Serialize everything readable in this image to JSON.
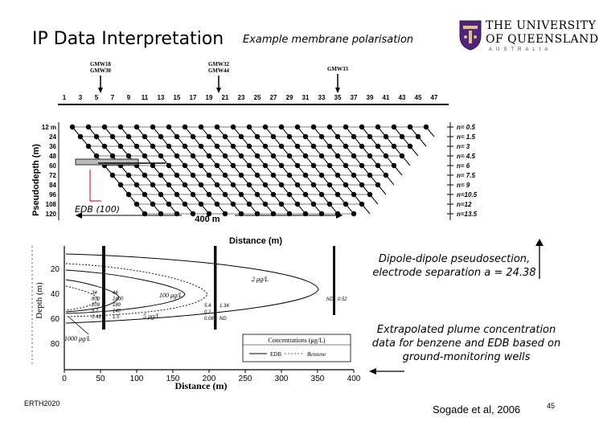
{
  "slide": {
    "title": "IP Data Interpretation",
    "subtitle": "Example membrane polarisation",
    "logo": {
      "line1": "THE UNIVERSITY",
      "line2": "OF QUEENSLAND",
      "line3": "AUSTRALIA"
    },
    "edb_label": "EDB (100)",
    "caption1": "Dipole-dipole pseudosection, electrode separation a = 24.38",
    "caption2": "Extrapolated plume concentration data for benzene and EDB based on ground-monitoring wells",
    "footer_left": "ERTH2020",
    "citation": "Sogade et al, 2006",
    "page_number": "45"
  },
  "figure1": {
    "wells": [
      "GMW18",
      "GMW30",
      "GMW32",
      "GMW44",
      "GMW33"
    ],
    "electrodes": [
      "1",
      "3",
      "5",
      "7",
      "9",
      "11",
      "13",
      "15",
      "17",
      "19",
      "21",
      "23",
      "25",
      "27",
      "29",
      "31",
      "33",
      "35",
      "37",
      "39",
      "41",
      "43",
      "45",
      "47"
    ],
    "depth_ticks": [
      "12 m",
      "24",
      "36",
      "48",
      "60",
      "72",
      "84",
      "96",
      "108",
      "120"
    ],
    "n_labels": [
      "n= 0.5",
      "n= 1.5",
      "n= 3",
      "n= 4.5",
      "n= 6",
      "n= 7.5",
      "n= 9",
      "n=10.5",
      "n=12",
      "n=13.5"
    ],
    "ylabel": "Pseudodepth (m)",
    "xlabel": "Distance (m)",
    "scale_label": "400 m"
  },
  "figure2": {
    "ylabel": "Depth (m)",
    "xlabel": "Distance (m)",
    "yticks": [
      "20",
      "40",
      "60",
      "80"
    ],
    "xticks": [
      "0",
      "50",
      "100",
      "150",
      "200",
      "250",
      "300",
      "350",
      "400"
    ],
    "contours": [
      "2 μg/L",
      "100 μg/L",
      "5 μg/L",
      "1000 μg/L"
    ],
    "well1_values": [
      "34",
      "800",
      "209",
      "9.2",
      "0.46"
    ],
    "well1_values_b": [
      "46",
      "2400",
      "180",
      "140",
      "1.5"
    ],
    "well2_values": [
      "5.4",
      "0.2",
      "0.08"
    ],
    "well2_values_b": [
      "1.34",
      "ND"
    ],
    "well3_values": [
      "ND",
      "0.52"
    ],
    "legend_title": "Concentrations (μg/L)",
    "legend_edb": "EDB",
    "legend_benzene": "Benzene"
  },
  "colors": {
    "accent": "#51247a",
    "ink": "#000000"
  }
}
